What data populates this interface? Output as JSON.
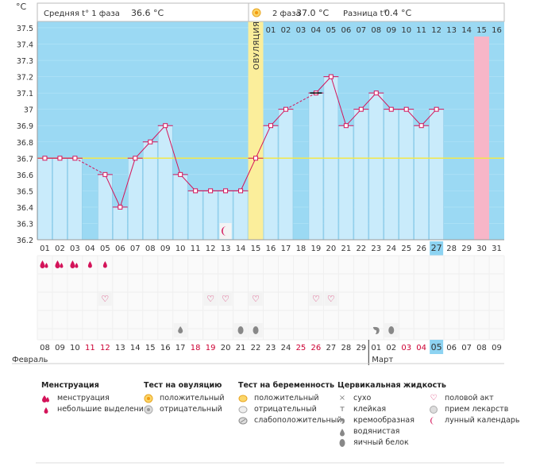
{
  "chart_data": {
    "type": "line",
    "unit_label": "°C",
    "phase1_label": "Средняя t° 1 фаза",
    "phase1_value": "36.6 °C",
    "phase2_label": "2 фаза",
    "phase2_value": "37.0 °C",
    "diff_label": "Разница t°",
    "diff_value": "0.4 °C",
    "ovulation_label": "ОВУЛЯЦИЯ",
    "coverline": 36.7,
    "ylim": [
      36.2,
      37.5
    ],
    "y_ticks": [
      "37.5",
      "37.4",
      "37.3",
      "37.2",
      "37.1",
      "37",
      "36.9",
      "36.8",
      "36.7",
      "36.6",
      "36.5",
      "36.4",
      "36.3",
      "36.2"
    ],
    "cycle_days": [
      "01",
      "02",
      "03",
      "04",
      "05",
      "06",
      "07",
      "08",
      "09",
      "10",
      "11",
      "12",
      "13",
      "14",
      "15",
      "16",
      "17",
      "18",
      "19",
      "20",
      "21",
      "22",
      "23",
      "24",
      "25",
      "26",
      "27",
      "28",
      "29",
      "30",
      "31"
    ],
    "top_days": [
      "01",
      "02",
      "03",
      "04",
      "05",
      "06",
      "07",
      "08",
      "09",
      "10",
      "11",
      "12",
      "13",
      "14",
      "15",
      "16"
    ],
    "top_days_highlight": "15",
    "current_cycle_day": "27",
    "temperatures": [
      36.7,
      36.7,
      36.7,
      null,
      36.6,
      36.4,
      36.7,
      36.8,
      36.9,
      36.6,
      36.5,
      36.5,
      36.5,
      36.5,
      36.7,
      36.9,
      37.0,
      null,
      37.1,
      37.2,
      36.9,
      37.0,
      37.1,
      37.0,
      37.0,
      36.9,
      37.0,
      null,
      null,
      null,
      null
    ],
    "date_days": [
      "08",
      "09",
      "10",
      "11",
      "12",
      "13",
      "14",
      "15",
      "16",
      "17",
      "18",
      "19",
      "20",
      "21",
      "22",
      "23",
      "24",
      "25",
      "26",
      "27",
      "28",
      "29",
      "01",
      "02",
      "03",
      "04",
      "05",
      "06",
      "07",
      "08",
      "09"
    ],
    "weekend_days": [
      3,
      4,
      10,
      11,
      17,
      18,
      24,
      25
    ],
    "today_date": "05",
    "month_left": "Февраль",
    "month_right": "Март",
    "menstruation_heavy": [
      1,
      2,
      3
    ],
    "menstruation_light": [
      4,
      5
    ],
    "intercourse": [
      5,
      12,
      13,
      15,
      19,
      20
    ],
    "fluid_watery": [
      10
    ],
    "fluid_eggwhite": [
      14,
      15,
      24
    ],
    "fluid_creamy": [
      23
    ],
    "lunar_day": 13
  },
  "legend": {
    "menstruation": {
      "title": "Менструация",
      "items": [
        "менструация",
        "небольшие выделения"
      ]
    },
    "ovulation_test": {
      "title": "Тест на овуляцию",
      "items": [
        "положительный",
        "отрицательный"
      ]
    },
    "pregnancy_test": {
      "title": "Тест на беременность",
      "items": [
        "положительный",
        "отрицательный",
        "слабоположительный"
      ]
    },
    "cervical_fluid": {
      "title": "Цервикальная жидкость",
      "items": [
        "сухо",
        "клейкая",
        "кремообразная",
        "водянистая",
        "яичный белок"
      ]
    },
    "other": {
      "items": [
        "половой акт",
        "прием лекарств",
        "лунный календарь"
      ]
    }
  },
  "colors": {
    "bg": "#9bd9f3",
    "bar": "#c9ebfb",
    "bar_stroke": "#8ccbe8",
    "line": "#d4145a",
    "coverline": "#f2e74b",
    "ovulation": "#fbee9b",
    "highlight": "#f7b6c8",
    "current": "#8dd3f2",
    "text": "#333333",
    "weekend": "#cc0033"
  }
}
